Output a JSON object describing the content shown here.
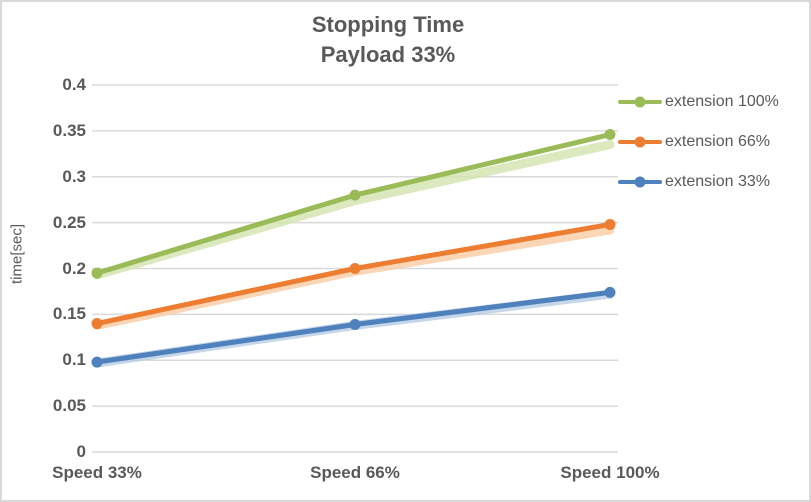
{
  "window": {
    "background": "#FFFFFF",
    "border_color": "#D9D9D9"
  },
  "title": {
    "line1": "Stopping Time",
    "line2": "Payload 33%",
    "color": "#595959"
  },
  "chart_data": {
    "type": "line",
    "title": "Stopping Time",
    "subtitle": "Payload 33%",
    "categories": [
      "Speed 33%",
      "Speed 66%",
      "Speed 100%"
    ],
    "series": [
      {
        "name": "extension 100%",
        "color": "#9BBB59",
        "light_color": "#D3E2AC",
        "values": [
          0.195,
          0.28,
          0.346
        ],
        "trend_values": [
          0.193,
          0.274,
          0.335
        ]
      },
      {
        "name": "extension 66%",
        "color": "#ED7D31",
        "light_color": "#F9CBA4",
        "values": [
          0.14,
          0.2,
          0.248
        ],
        "trend_values": [
          0.138,
          0.197,
          0.242
        ]
      },
      {
        "name": "extension 33%",
        "color": "#4F81BD",
        "light_color": "#B7CCE4",
        "values": [
          0.098,
          0.139,
          0.174
        ],
        "trend_values": [
          0.097,
          0.138,
          0.172
        ]
      }
    ],
    "xlabel": "",
    "ylabel": "time[sec]",
    "ylim": [
      0,
      0.4
    ],
    "y_ticks": [
      "0",
      "0.05",
      "0.1",
      "0.15",
      "0.2",
      "0.25",
      "0.3",
      "0.35",
      "0.4"
    ],
    "y_tick_values": [
      0,
      0.05,
      0.1,
      0.15,
      0.2,
      0.25,
      0.3,
      0.35,
      0.4
    ],
    "grid": true,
    "grid_color": "#D9D9D9",
    "axis_text_color": "#595959",
    "legend_position": "right"
  }
}
